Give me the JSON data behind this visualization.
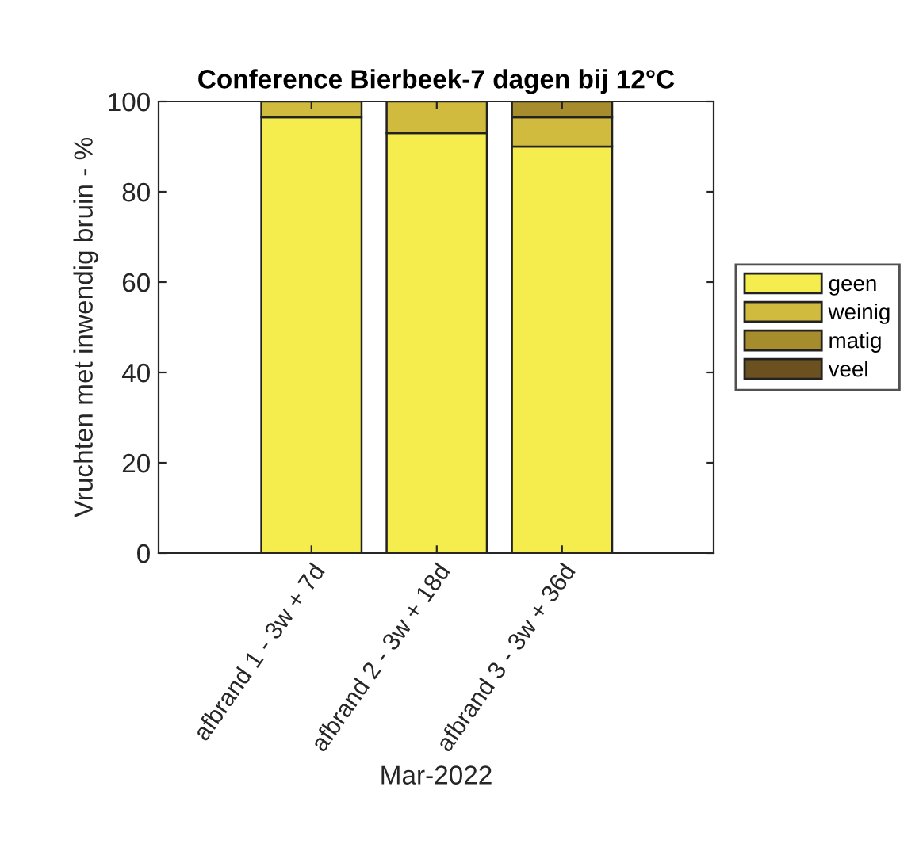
{
  "chart_data": {
    "type": "bar",
    "title": "Conference Bierbeek-7 dagen bij 12°C",
    "xlabel": "Mar-2022",
    "ylabel": "Vruchten met inwendig bruin - %",
    "categories": [
      "afbrand 1 - 3w + 7d",
      "afbrand 2 - 3w + 18d",
      "afbrand 3 - 3w + 36d"
    ],
    "stacked": true,
    "ylim": [
      0,
      100
    ],
    "yticks": [
      0,
      20,
      40,
      60,
      80,
      100
    ],
    "grid": false,
    "legend": "right",
    "series": [
      {
        "name": "geen",
        "color": "#f5ed4e",
        "values": [
          96.5,
          93,
          90
        ]
      },
      {
        "name": "weinig",
        "color": "#d1bb3f",
        "values": [
          3.5,
          7,
          6.5
        ]
      },
      {
        "name": "matig",
        "color": "#a78c2e",
        "values": [
          0,
          0,
          3.5
        ]
      },
      {
        "name": "veel",
        "color": "#6b5020",
        "values": [
          0,
          0,
          0
        ]
      }
    ]
  }
}
